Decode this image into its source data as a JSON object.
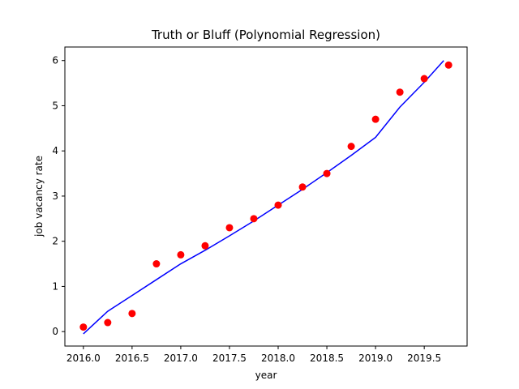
{
  "chart_data": {
    "type": "scatter",
    "title": "Truth or Bluff (Polynomial Regression)",
    "xlabel": "year",
    "ylabel": "job vacancy rate",
    "xlim": [
      2015.81,
      2019.94
    ],
    "ylim": [
      -0.32,
      6.3
    ],
    "xticks": [
      2016.0,
      2016.5,
      2017.0,
      2017.5,
      2018.0,
      2018.5,
      2019.0,
      2019.5
    ],
    "xtick_labels": [
      "2016.0",
      "2016.5",
      "2017.0",
      "2017.5",
      "2018.0",
      "2018.5",
      "2019.0",
      "2019.5"
    ],
    "yticks": [
      0,
      1,
      2,
      3,
      4,
      5,
      6
    ],
    "ytick_labels": [
      "0",
      "1",
      "2",
      "3",
      "4",
      "5",
      "6"
    ],
    "grid": false,
    "series": [
      {
        "kind": "scatter",
        "color": "#ff0000",
        "x": [
          2016.0,
          2016.25,
          2016.5,
          2016.75,
          2017.0,
          2017.25,
          2017.5,
          2017.75,
          2018.0,
          2018.25,
          2018.5,
          2018.75,
          2019.0,
          2019.25,
          2019.5,
          2019.75
        ],
        "y": [
          0.1,
          0.2,
          0.4,
          1.5,
          1.7,
          1.9,
          2.3,
          2.5,
          2.8,
          3.2,
          3.5,
          4.1,
          4.7,
          5.3,
          5.6,
          5.9
        ]
      },
      {
        "kind": "line",
        "color": "#0000ff",
        "x": [
          2016.0,
          2016.25,
          2016.5,
          2016.75,
          2017.0,
          2017.25,
          2017.5,
          2017.75,
          2018.0,
          2018.25,
          2018.5,
          2018.75,
          2019.0,
          2019.25,
          2019.5,
          2019.7
        ],
        "y": [
          -0.05,
          0.45,
          0.8,
          1.15,
          1.5,
          1.8,
          2.12,
          2.45,
          2.8,
          3.15,
          3.52,
          3.9,
          4.3,
          4.97,
          5.52,
          6.0
        ]
      }
    ]
  }
}
